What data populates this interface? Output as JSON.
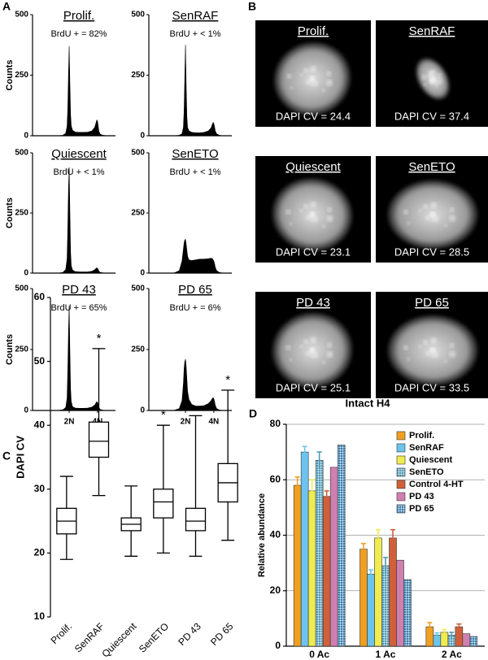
{
  "panel_labels": [
    "A",
    "B",
    "C",
    "D"
  ],
  "images": [
    {
      "title": "Prolif.",
      "caption": "DAPI CV = 24.4"
    },
    {
      "title": "SenRAF",
      "caption": "DAPI CV = 37.4"
    },
    {
      "title": "Quiescent",
      "caption": "DAPI CV = 23.1"
    },
    {
      "title": "SenETO",
      "caption": "DAPI CV = 28.5"
    },
    {
      "title": "PD 43",
      "caption": "DAPI CV = 25.1"
    },
    {
      "title": "PD 65",
      "caption": "DAPI CV = 33.5"
    }
  ],
  "chart_data": [
    {
      "type": "area",
      "title": "Prolif.",
      "annotation": "BrdU + = 82%",
      "ylabel": "Counts",
      "color": "#000000",
      "x": [
        1.8,
        2.2,
        2.4,
        2.5,
        2.55,
        2.6,
        2.65,
        2.7,
        2.75,
        2.8,
        2.9,
        3.1,
        3.4,
        3.7,
        4.0,
        4.3,
        4.5,
        4.6,
        4.65,
        4.7,
        4.75,
        4.8,
        4.9,
        5.1,
        5.4
      ],
      "values": [
        0,
        2,
        10,
        40,
        110,
        250,
        370,
        220,
        90,
        40,
        22,
        15,
        14,
        14,
        15,
        20,
        35,
        55,
        65,
        60,
        40,
        18,
        6,
        2,
        0
      ],
      "xlim": [
        0,
        6
      ],
      "ylim": [
        0,
        500
      ],
      "yticks": [
        0,
        250,
        500
      ]
    },
    {
      "type": "area",
      "title": "SenRAF",
      "annotation": "BrdU + < 1%",
      "color": "#000000",
      "x": [
        1.8,
        2.2,
        2.4,
        2.5,
        2.55,
        2.6,
        2.65,
        2.7,
        2.75,
        2.8,
        2.9,
        3.1,
        3.4,
        3.7,
        4.0,
        4.3,
        4.5,
        4.6,
        4.65,
        4.7,
        4.75,
        4.8,
        4.9,
        5.1,
        5.4
      ],
      "values": [
        0,
        2,
        8,
        35,
        100,
        240,
        375,
        210,
        80,
        35,
        20,
        14,
        12,
        12,
        14,
        20,
        32,
        48,
        55,
        50,
        38,
        20,
        8,
        2,
        0
      ],
      "xlim": [
        0,
        6
      ],
      "ylim": [
        0,
        500
      ],
      "yticks": [
        0,
        250,
        500
      ]
    },
    {
      "type": "area",
      "title": "Quiescent",
      "annotation": "BrdU + < 1%",
      "ylabel": "Counts",
      "color": "#000000",
      "x": [
        1.8,
        2.2,
        2.4,
        2.5,
        2.55,
        2.6,
        2.65,
        2.7,
        2.75,
        2.8,
        2.9,
        3.1,
        3.4,
        3.7,
        4.0,
        4.3,
        4.5,
        4.6,
        4.65,
        4.7,
        4.75,
        4.8,
        4.9,
        5.1,
        5.4
      ],
      "values": [
        0,
        3,
        15,
        60,
        180,
        350,
        440,
        260,
        90,
        30,
        12,
        6,
        5,
        5,
        5,
        8,
        14,
        20,
        22,
        20,
        15,
        8,
        3,
        1,
        0
      ],
      "xlim": [
        0,
        6
      ],
      "ylim": [
        0,
        500
      ],
      "yticks": [
        0,
        250,
        500
      ]
    },
    {
      "type": "area",
      "title": "SenETO",
      "annotation": "BrdU + < 1%",
      "color": "#000000",
      "x": [
        1.8,
        2.2,
        2.4,
        2.5,
        2.55,
        2.6,
        2.65,
        2.7,
        2.75,
        2.8,
        2.9,
        3.1,
        3.4,
        3.7,
        4.0,
        4.3,
        4.5,
        4.6,
        4.65,
        4.7,
        4.75,
        4.8,
        4.9,
        5.1,
        5.4
      ],
      "values": [
        0,
        10,
        50,
        100,
        125,
        138,
        140,
        120,
        95,
        70,
        55,
        52,
        55,
        58,
        58,
        60,
        62,
        60,
        55,
        50,
        40,
        25,
        10,
        3,
        0
      ],
      "xlim": [
        0,
        6
      ],
      "ylim": [
        0,
        500
      ],
      "yticks": [
        0,
        250,
        500
      ]
    },
    {
      "type": "area",
      "title": "PD 43",
      "annotation": "BrdU + = 65%",
      "ylabel": "Counts",
      "color": "#000000",
      "x": [
        1.8,
        2.2,
        2.4,
        2.5,
        2.55,
        2.6,
        2.65,
        2.7,
        2.75,
        2.8,
        2.9,
        3.1,
        3.4,
        3.7,
        4.0,
        4.3,
        4.5,
        4.6,
        4.65,
        4.7,
        4.75,
        4.8,
        4.9,
        5.1,
        5.4
      ],
      "values": [
        0,
        3,
        12,
        50,
        160,
        320,
        430,
        250,
        90,
        35,
        15,
        10,
        9,
        9,
        10,
        14,
        22,
        32,
        36,
        33,
        25,
        12,
        4,
        1,
        0
      ],
      "xlim": [
        0,
        6
      ],
      "ylim": [
        0,
        500
      ],
      "yticks": [
        0,
        250,
        500
      ],
      "xticks": [
        {
          "value": 2.65,
          "label": "2N"
        },
        {
          "value": 4.7,
          "label": "4N"
        }
      ]
    },
    {
      "type": "area",
      "title": "PD 65",
      "annotation": "BrdU + = 6%",
      "color": "#000000",
      "x": [
        1.8,
        2.2,
        2.4,
        2.5,
        2.55,
        2.6,
        2.65,
        2.7,
        2.75,
        2.8,
        2.9,
        3.1,
        3.4,
        3.7,
        4.0,
        4.3,
        4.5,
        4.6,
        4.65,
        4.7,
        4.75,
        4.8,
        4.9,
        5.1,
        5.4
      ],
      "values": [
        0,
        8,
        40,
        110,
        170,
        200,
        210,
        180,
        130,
        80,
        45,
        25,
        18,
        18,
        20,
        28,
        40,
        50,
        52,
        48,
        38,
        22,
        8,
        2,
        0
      ],
      "xlim": [
        0,
        6
      ],
      "ylim": [
        0,
        500
      ],
      "yticks": [
        0,
        250,
        500
      ],
      "xticks": [
        {
          "value": 2.65,
          "label": "2N"
        },
        {
          "value": 4.7,
          "label": "4N"
        }
      ]
    },
    {
      "type": "box",
      "ylabel": "DAPI CV",
      "categories": [
        "Prolif.",
        "SenRAF",
        "Quiescent",
        "SenETO",
        "PD 43",
        "PD 65"
      ],
      "min": [
        19,
        29,
        19.5,
        20,
        19.5,
        22
      ],
      "q1": [
        23,
        35,
        23.5,
        25.5,
        23.5,
        28
      ],
      "median": [
        25,
        37.5,
        24.5,
        28,
        25,
        31
      ],
      "q3": [
        27,
        40.5,
        25.5,
        30,
        27,
        34
      ],
      "max": [
        32,
        52,
        30.5,
        40,
        41.5,
        45.5
      ],
      "markers": [
        null,
        "*",
        null,
        "*",
        null,
        "*"
      ],
      "ylim": [
        10,
        60
      ],
      "yticks": [
        10,
        20,
        30,
        40,
        50,
        60
      ]
    },
    {
      "type": "bar",
      "title": "Intact H4",
      "ylabel": "Relative abundance",
      "categories": [
        "0 Ac",
        "1 Ac",
        "2 Ac"
      ],
      "series": [
        {
          "name": "Prolif.",
          "color": "#f0a020",
          "values": [
            58,
            35,
            7
          ],
          "errors": [
            3,
            2,
            1.5
          ]
        },
        {
          "name": "SenRAF",
          "color": "#6cc4ee",
          "values": [
            70,
            26,
            4
          ],
          "errors": [
            2,
            1.5,
            0.8
          ]
        },
        {
          "name": "Quiescent",
          "color": "#f0ec50",
          "values": [
            56,
            39,
            5
          ],
          "errors": [
            4,
            3,
            1
          ]
        },
        {
          "name": "SenETO",
          "color": "#4f9ab8",
          "hatch": true,
          "values": [
            67,
            29,
            4
          ],
          "errors": [
            3,
            3,
            1
          ]
        },
        {
          "name": "Control 4-HT",
          "color": "#d0603a",
          "values": [
            54,
            39,
            7
          ],
          "errors": [
            2,
            3,
            1
          ]
        },
        {
          "name": "PD 43",
          "color": "#d080b0",
          "values": [
            64.5,
            31,
            4.5
          ]
        },
        {
          "name": "PD 65",
          "color": "#3a7fb0",
          "hatch": true,
          "values": [
            72.5,
            24,
            3.5
          ]
        }
      ],
      "ylim": [
        0,
        80
      ],
      "yticks": [
        0,
        20,
        40,
        60,
        80
      ],
      "grid": true,
      "legend": "top-right"
    }
  ]
}
